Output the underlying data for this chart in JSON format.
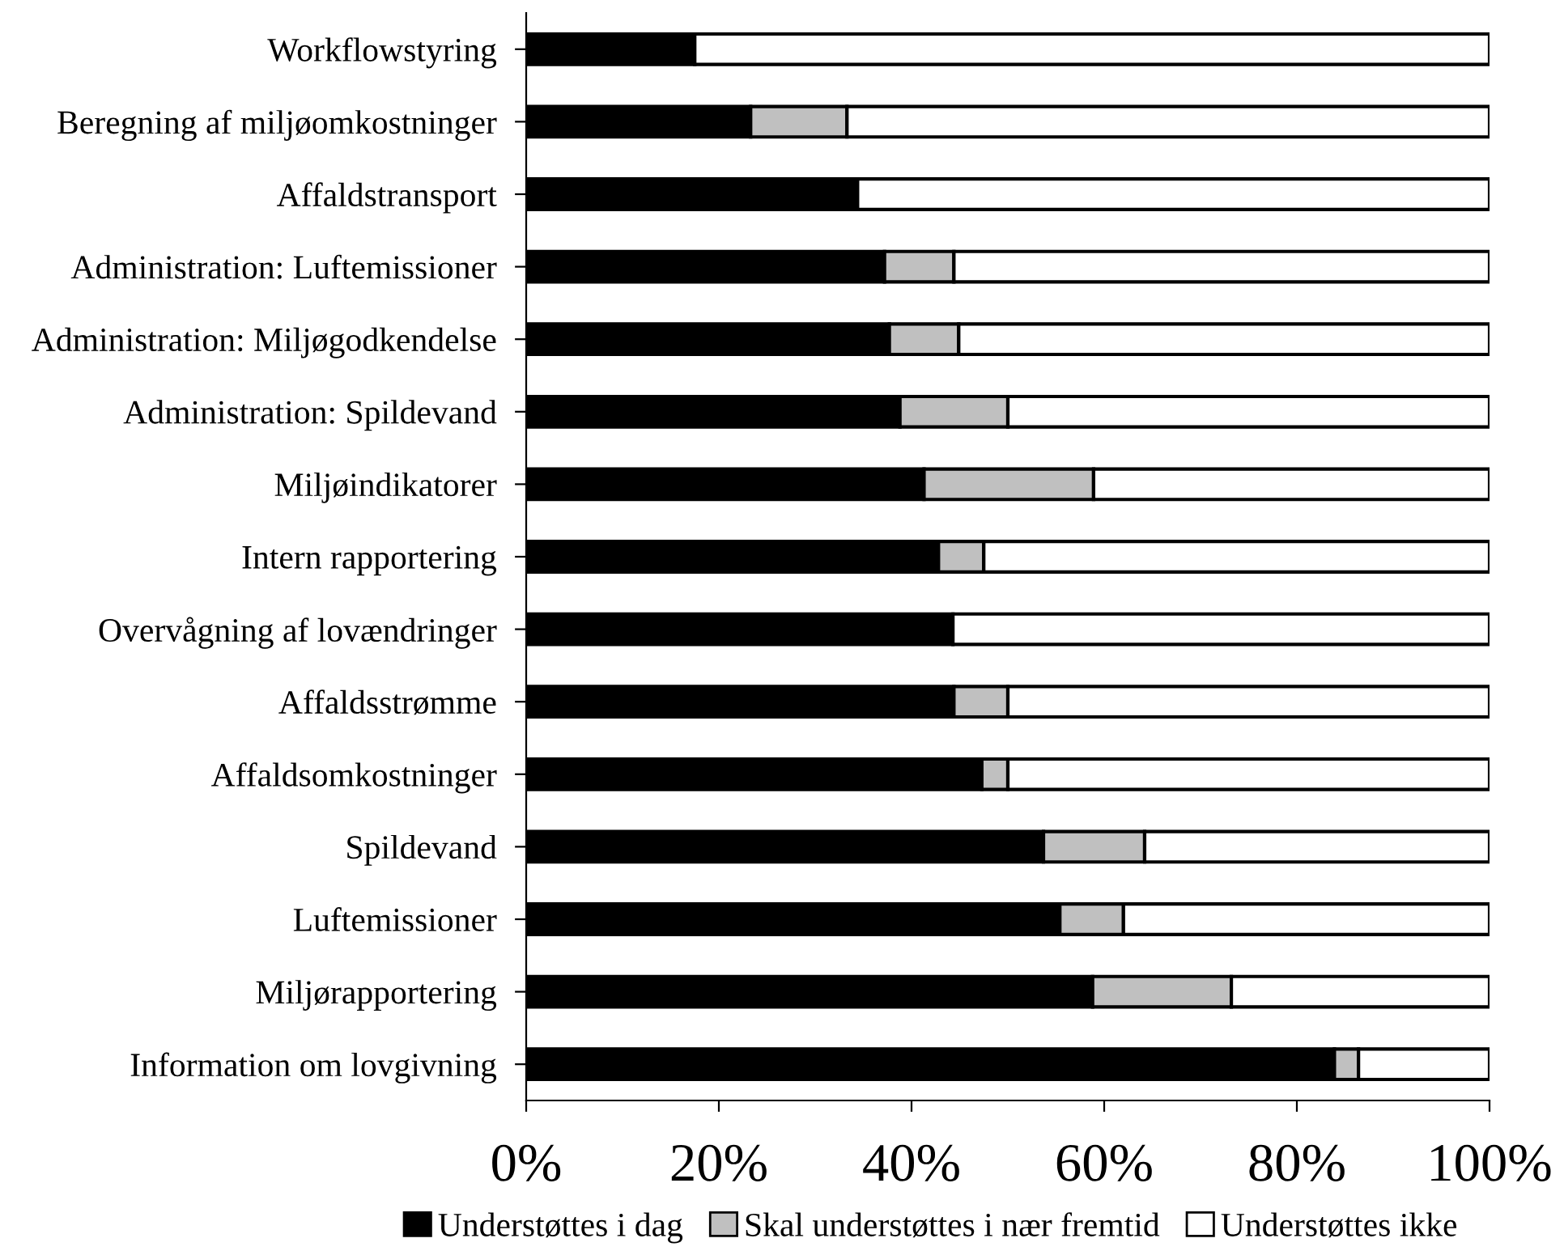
{
  "chart_data": {
    "type": "bar",
    "orientation": "horizontal",
    "stacked": true,
    "categories": [
      "Workflowstyring",
      "Beregning af miljøomkostninger",
      "Affaldstransport",
      "Administration: Luftemissioner",
      "Administration: Miljøgodkendelse",
      "Administration: Spildevand",
      "Miljøindikatorer",
      "Intern rapportering",
      "Overvågning af lovændringer",
      "Affaldsstrømme",
      "Affaldsomkostninger",
      "Spildevand",
      "Luftemissioner",
      "Miljørapportering",
      "Information om lovgivning"
    ],
    "series": [
      {
        "name": "Understøttes i dag",
        "color": "#000000",
        "values": [
          17.5,
          23.3,
          34.4,
          37.2,
          37.7,
          38.8,
          41.3,
          42.8,
          44.3,
          44.4,
          47.3,
          53.7,
          55.4,
          58.8,
          83.9
        ]
      },
      {
        "name": "Skal understøttes i nær fremtid",
        "color": "#c0c0c0",
        "values": [
          0,
          10,
          0,
          7.2,
          7.2,
          11.2,
          17.6,
          4.7,
          0,
          5.6,
          2.7,
          10.5,
          6.6,
          14.4,
          2.5
        ]
      },
      {
        "name": "Understøttes ikke",
        "color": "#ffffff",
        "values": [
          82.5,
          66.7,
          65.6,
          55.6,
          55.1,
          50,
          41.1,
          52.5,
          55.7,
          50,
          50,
          35.8,
          38,
          26.8,
          13.6
        ]
      }
    ],
    "xlim": [
      0,
      100
    ],
    "xticks": [
      {
        "value": 0,
        "label": "0%"
      },
      {
        "value": 20,
        "label": "20%"
      },
      {
        "value": 40,
        "label": "40%"
      },
      {
        "value": 60,
        "label": "60%"
      },
      {
        "value": 80,
        "label": "80%"
      },
      {
        "value": 100,
        "label": "100%"
      }
    ],
    "grid": false,
    "legend": "bottom"
  }
}
